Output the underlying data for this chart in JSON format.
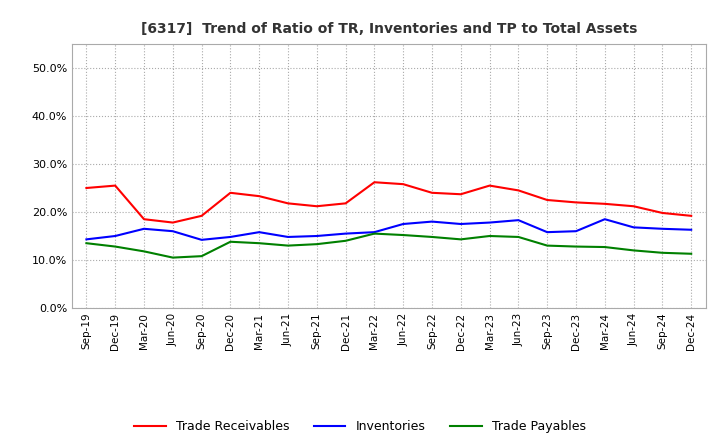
{
  "title": "[6317]  Trend of Ratio of TR, Inventories and TP to Total Assets",
  "x_labels": [
    "Sep-19",
    "Dec-19",
    "Mar-20",
    "Jun-20",
    "Sep-20",
    "Dec-20",
    "Mar-21",
    "Jun-21",
    "Sep-21",
    "Dec-21",
    "Mar-22",
    "Jun-22",
    "Sep-22",
    "Dec-22",
    "Mar-23",
    "Jun-23",
    "Sep-23",
    "Dec-23",
    "Mar-24",
    "Jun-24",
    "Sep-24",
    "Dec-24"
  ],
  "trade_receivables": [
    0.25,
    0.255,
    0.185,
    0.178,
    0.192,
    0.24,
    0.233,
    0.218,
    0.212,
    0.218,
    0.262,
    0.258,
    0.24,
    0.237,
    0.255,
    0.245,
    0.225,
    0.22,
    0.217,
    0.212,
    0.198,
    0.192
  ],
  "inventories": [
    0.143,
    0.15,
    0.165,
    0.16,
    0.142,
    0.148,
    0.158,
    0.148,
    0.15,
    0.155,
    0.158,
    0.175,
    0.18,
    0.175,
    0.178,
    0.183,
    0.158,
    0.16,
    0.185,
    0.168,
    0.165,
    0.163
  ],
  "trade_payables": [
    0.135,
    0.128,
    0.118,
    0.105,
    0.108,
    0.138,
    0.135,
    0.13,
    0.133,
    0.14,
    0.155,
    0.152,
    0.148,
    0.143,
    0.15,
    0.148,
    0.13,
    0.128,
    0.127,
    0.12,
    0.115,
    0.113
  ],
  "ylim": [
    0.0,
    0.55
  ],
  "yticks": [
    0.0,
    0.1,
    0.2,
    0.3,
    0.4,
    0.5
  ],
  "line_colors": {
    "trade_receivables": "red",
    "inventories": "blue",
    "trade_payables": "green"
  },
  "legend_labels": [
    "Trade Receivables",
    "Inventories",
    "Trade Payables"
  ],
  "background_color": "#ffffff",
  "grid_color": "#aaaaaa"
}
